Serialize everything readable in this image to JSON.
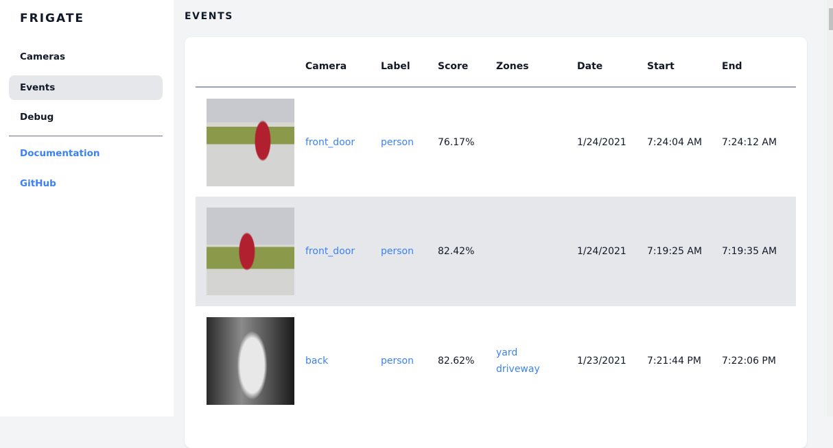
{
  "sidebar": {
    "brand": "FRIGATE",
    "items": [
      {
        "label": "Cameras"
      },
      {
        "label": "Events",
        "active": true
      },
      {
        "label": "Debug"
      }
    ],
    "links": [
      {
        "label": "Documentation"
      },
      {
        "label": "GitHub"
      }
    ]
  },
  "main": {
    "title": "EVENTS",
    "columns": [
      "",
      "Camera",
      "Label",
      "Score",
      "Zones",
      "Date",
      "Start",
      "End"
    ],
    "rows": [
      {
        "camera": "front_door",
        "label": "person",
        "score": "76.17%",
        "zones": [
          "",
          ""
        ],
        "date": "1/24/2021",
        "start": "7:24:04 AM",
        "end": "7:24:12 AM"
      },
      {
        "camera": "front_door",
        "label": "person",
        "score": "82.42%",
        "zones": [
          "",
          ""
        ],
        "date": "1/24/2021",
        "start": "7:19:25 AM",
        "end": "7:19:35 AM"
      },
      {
        "camera": "back",
        "label": "person",
        "score": "82.62%",
        "zones": [
          "yard",
          "driveway"
        ],
        "date": "1/23/2021",
        "start": "7:21:44 PM",
        "end": "7:22:06 PM"
      }
    ]
  },
  "colors": {
    "accent": "#3b82f6",
    "active_bg": "#e5e7eb",
    "page_bg": "#f3f4f6"
  }
}
